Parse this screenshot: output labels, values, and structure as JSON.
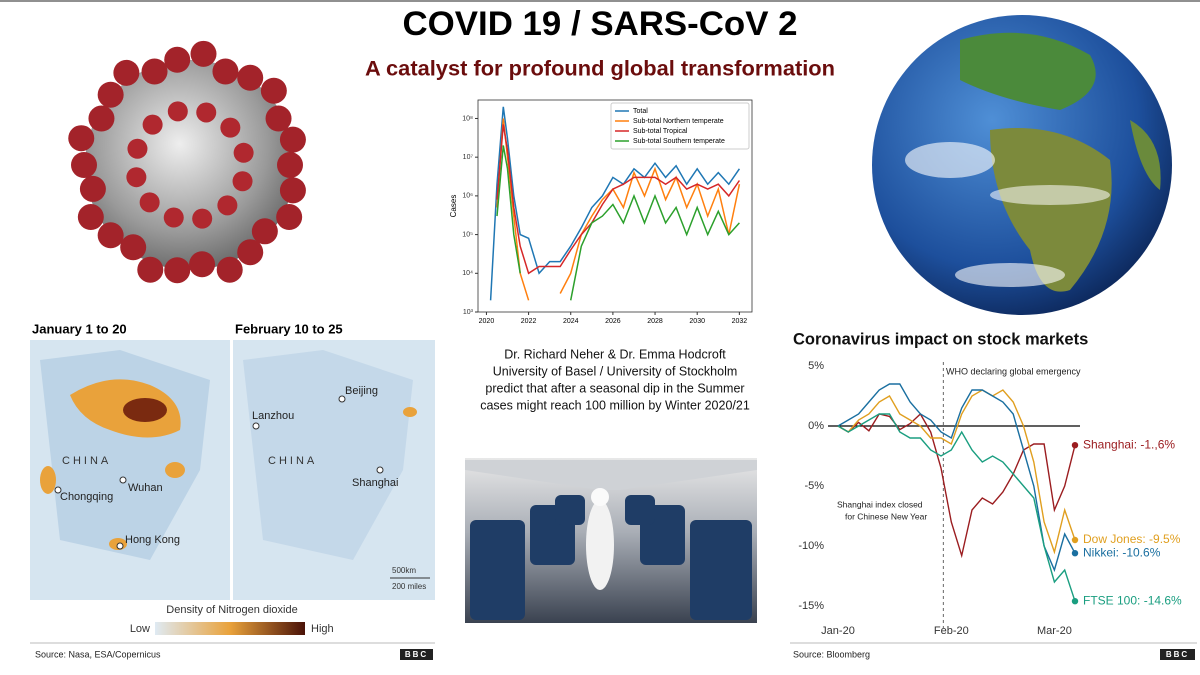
{
  "header": {
    "title": "COVID 19 / SARS-CoV 2",
    "subtitle": "A catalyst for profound global transformation"
  },
  "maps": {
    "left_title": "January 1 to 20",
    "right_title": "February 10 to 25",
    "left_labels": [
      "CHINA",
      "Chongqing",
      "Wuhan",
      "Hong Kong"
    ],
    "right_labels": [
      "Beijing",
      "Lanzhou",
      "CHINA",
      "Shanghai"
    ],
    "scale": [
      "500km",
      "200 miles"
    ],
    "legend_title": "Density of Nitrogen dioxide",
    "legend_low": "Low",
    "legend_high": "High",
    "source": "Source: Nasa, ESA/Copernicus",
    "logo": "BBC"
  },
  "quote": {
    "lines": [
      "Dr. Richard Neher & Dr. Emma Hodcroft",
      "University of Basel / University of Stockholm",
      "predict that after a seasonal dip in the Summer",
      "cases might reach 100 million by Winter 2020/21"
    ]
  },
  "stock_footer": {
    "source": "Source: Bloomberg",
    "logo": "BBC"
  },
  "chart_data": [
    {
      "type": "line",
      "y_label": "Cases",
      "log_scale": true,
      "legend": "upper right",
      "x": [
        2020.2,
        2020.5,
        2020.8,
        2021,
        2021.3,
        2021.6,
        2022,
        2022.5,
        2023,
        2023.5,
        2024,
        2024.5,
        2025,
        2025.5,
        2026,
        2026.5,
        2027,
        2027.5,
        2028,
        2028.5,
        2029,
        2029.5,
        2030,
        2030.5,
        2031,
        2031.5,
        2032
      ],
      "xlim": [
        2019.6,
        2032.6
      ],
      "xticks": [
        2020,
        2022,
        2024,
        2026,
        2028,
        2030,
        2032
      ],
      "ylim": [
        1000,
        300000000
      ],
      "yticks": [
        {
          "value": 1000,
          "label": "10³"
        },
        {
          "value": 10000,
          "label": "10⁴"
        },
        {
          "value": 100000,
          "label": "10⁵"
        },
        {
          "value": 1000000,
          "label": "10⁶"
        },
        {
          "value": 10000000,
          "label": "10⁷"
        },
        {
          "value": 100000000,
          "label": "10⁸"
        }
      ],
      "series": [
        {
          "name": "Total",
          "color": "#1f77b4",
          "values": [
            2000,
            2000000,
            200000000,
            30000000,
            1000000,
            100000,
            80000,
            10000,
            20000,
            20000,
            50000,
            150000,
            500000,
            1000000,
            3000000,
            2000000,
            5000000,
            3000000,
            7000000,
            3000000,
            6000000,
            2000000,
            5000000,
            2000000,
            4000000,
            2000000,
            5000000
          ]
        },
        {
          "name": "Sub-total Northern temperate",
          "color": "#ff7f0e",
          "values": [
            null,
            500000,
            100000000,
            10000000,
            300000,
            10000,
            2000,
            null,
            null,
            3000,
            10000,
            100000,
            300000,
            800000,
            1500000,
            500000,
            4000000,
            1000000,
            5000000,
            800000,
            3000000,
            500000,
            2000000,
            300000,
            1500000,
            100000,
            2000000
          ]
        },
        {
          "name": "Sub-total Tropical",
          "color": "#d62728",
          "values": [
            null,
            800000,
            70000000,
            15000000,
            500000,
            50000,
            10000,
            15000,
            15000,
            15000,
            40000,
            100000,
            200000,
            600000,
            1500000,
            2000000,
            3000000,
            3000000,
            3000000,
            2000000,
            3000000,
            1500000,
            2000000,
            1500000,
            2000000,
            1000000,
            2500000
          ]
        },
        {
          "name": "Sub-total Southern temperate",
          "color": "#2ca02c",
          "values": [
            null,
            300000,
            20000000,
            5000000,
            100000,
            10000,
            null,
            null,
            null,
            null,
            2000,
            50000,
            200000,
            300000,
            600000,
            200000,
            1000000,
            200000,
            1000000,
            200000,
            500000,
            100000,
            500000,
            100000,
            400000,
            100000,
            200000
          ]
        }
      ]
    },
    {
      "type": "line",
      "title": "Coronavirus impact on stock markets",
      "annotations": [
        "WHO declaring global emergency",
        "Shanghai index closed",
        "for Chinese New Year"
      ],
      "categories": [
        "Jan-20",
        null,
        null,
        null,
        null,
        null,
        null,
        null,
        null,
        null,
        null,
        "Feb-20",
        null,
        null,
        null,
        null,
        null,
        null,
        null,
        null,
        null,
        "Mar-20",
        null,
        null
      ],
      "ylim": [
        -16.5,
        6
      ],
      "yticks": [
        {
          "value": 5,
          "label": "5%"
        },
        {
          "value": 0,
          "label": "0%"
        },
        {
          "value": -5,
          "label": "-5%"
        },
        {
          "value": -10,
          "label": "-10%"
        },
        {
          "value": -15,
          "label": "-15%"
        }
      ],
      "series": [
        {
          "name": "Shanghai",
          "color": "#9b1d20",
          "end_label": "Shanghai: -1.,6%",
          "values": [
            0,
            -0.5,
            0.3,
            -0.4,
            1,
            0.8,
            -0.3,
            0.2,
            1,
            -0.5,
            -3.5,
            -8,
            -10.8,
            -7,
            -6,
            -6.5,
            -5.5,
            -4,
            -2,
            -1.5,
            -1.5,
            -7,
            -5,
            -1.6
          ]
        },
        {
          "name": "Dow Jones",
          "color": "#e09f1f",
          "end_label": "Dow Jones: -9.5%",
          "values": [
            0,
            -0.5,
            0.5,
            1,
            2,
            2.5,
            1,
            0.5,
            0,
            -1,
            -1,
            -1.5,
            1,
            2.5,
            3,
            2.5,
            3,
            2,
            0,
            -3,
            -8,
            -10.5,
            -7,
            -9.5
          ]
        },
        {
          "name": "Nikkei",
          "color": "#1a6fa0",
          "end_label": "Nikkei: -10.6%",
          "values": [
            0,
            0.5,
            1,
            2,
            3,
            3.5,
            3.5,
            2,
            1,
            0.5,
            -0.5,
            -1,
            1.5,
            3,
            3,
            2.5,
            2,
            1,
            -2,
            -5,
            -10,
            -12,
            -9,
            -10.6
          ]
        },
        {
          "name": "FTSE 100",
          "color": "#1a9e80",
          "end_label": "FTSE 100: -14.6%",
          "values": [
            0,
            -0.5,
            0,
            0.5,
            1,
            1,
            -0.5,
            -1,
            -1,
            -2,
            -2.5,
            -2,
            -0.5,
            -2,
            -3,
            -2.5,
            -3,
            -4,
            -5,
            -6,
            -10,
            -13,
            -12,
            -14.6
          ]
        }
      ]
    }
  ]
}
